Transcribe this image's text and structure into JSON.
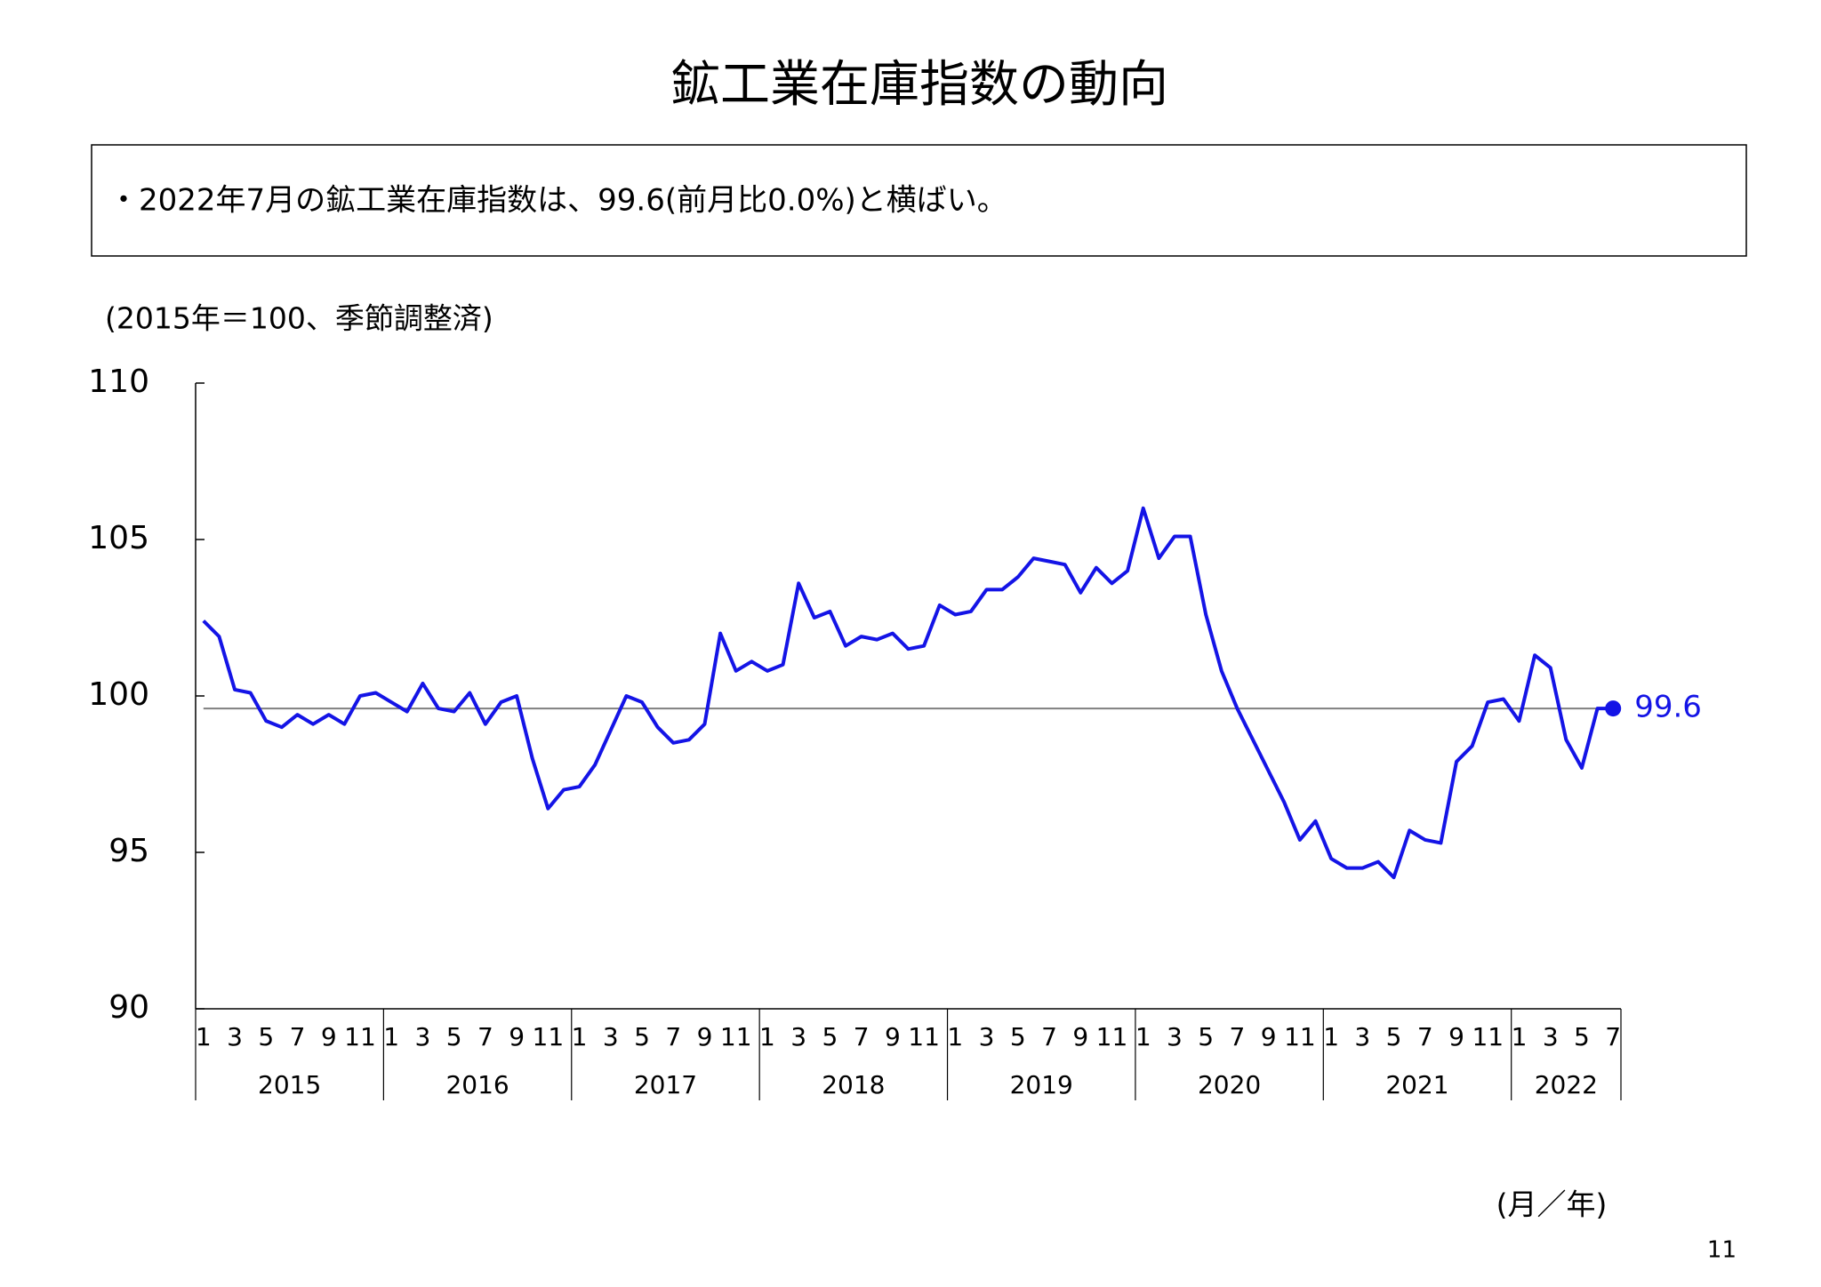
{
  "chart_data": {
    "type": "line",
    "title": "鉱工業在庫指数の動向",
    "summary": "・2022年7月の鉱工業在庫指数は、99.6(前月比0.0%)と横ばい。",
    "y_label": "(2015年＝100、季節調整済)",
    "x_label": "(月／年)",
    "page_number": "11",
    "categories": [
      "1",
      null,
      "3",
      null,
      "5",
      null,
      "7",
      null,
      "9",
      null,
      "11",
      null,
      "1",
      null,
      "3",
      null,
      "5",
      null,
      "7",
      null,
      "9",
      null,
      "11",
      null,
      "1",
      null,
      "3",
      null,
      "5",
      null,
      "7",
      null,
      "9",
      null,
      "11",
      null,
      "1",
      null,
      "3",
      null,
      "5",
      null,
      "7",
      null,
      "9",
      null,
      "11",
      null,
      "1",
      null,
      "3",
      null,
      "5",
      null,
      "7",
      null,
      "9",
      null,
      "11",
      null,
      "1",
      null,
      "3",
      null,
      "5",
      null,
      "7",
      null,
      "9",
      null,
      "11",
      null,
      "1",
      null,
      "3",
      null,
      "5",
      null,
      "7",
      null,
      "9",
      null,
      "11",
      null,
      "1",
      null,
      "3",
      null,
      "5",
      null,
      "7"
    ],
    "years": [
      "2015",
      "2016",
      "2017",
      "2018",
      "2019",
      "2020",
      "2021",
      "2022"
    ],
    "series": [
      {
        "color": "#1414e6",
        "values": [
          102.4,
          101.9,
          100.2,
          100.1,
          99.2,
          99.0,
          99.4,
          99.1,
          99.4,
          99.1,
          100.0,
          100.1,
          99.8,
          99.5,
          100.4,
          99.6,
          99.5,
          100.1,
          99.1,
          99.8,
          100.0,
          98.0,
          96.4,
          97.0,
          97.1,
          97.8,
          98.9,
          100.0,
          99.8,
          99.0,
          98.5,
          98.6,
          99.1,
          102.0,
          100.8,
          101.1,
          100.8,
          101.0,
          103.6,
          102.5,
          102.7,
          101.6,
          101.9,
          101.8,
          102.0,
          101.5,
          101.6,
          102.9,
          102.6,
          102.7,
          103.4,
          103.4,
          103.8,
          104.4,
          104.3,
          104.2,
          103.3,
          104.1,
          103.6,
          104.0,
          106.0,
          104.4,
          105.1,
          105.1,
          102.6,
          100.8,
          99.6,
          98.6,
          97.6,
          96.6,
          95.4,
          96.0,
          94.8,
          94.5,
          94.5,
          94.7,
          94.2,
          95.7,
          95.4,
          95.3,
          97.9,
          98.4,
          99.8,
          99.9,
          99.2,
          101.3,
          100.9,
          98.6,
          97.7,
          99.6,
          99.6
        ]
      }
    ],
    "reference_line": 99.6,
    "ylim": [
      90,
      110
    ],
    "yticks": [
      90,
      95,
      100,
      105,
      110
    ]
  }
}
